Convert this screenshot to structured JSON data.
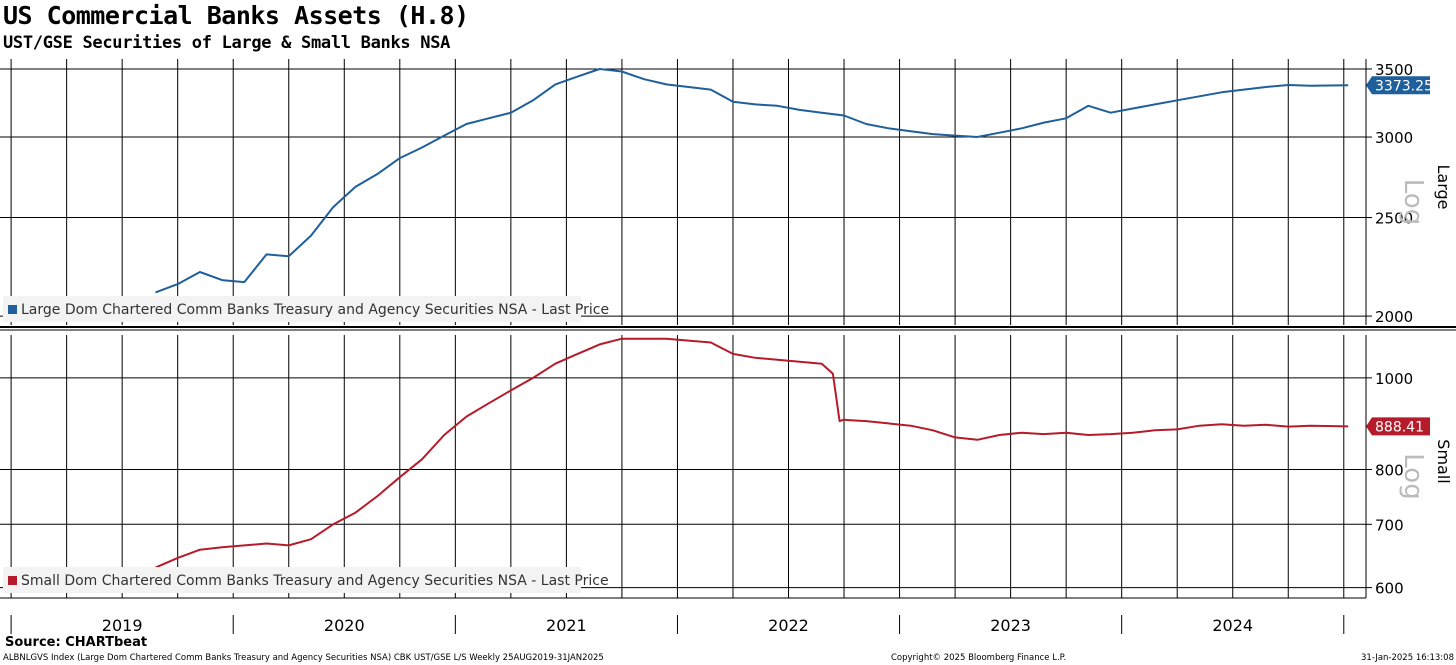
{
  "header": {
    "title": "US Commercial Banks Assets (H.8)",
    "subtitle": "UST/GSE Securities of Large & Small Banks NSA"
  },
  "chart_data": [
    {
      "type": "line",
      "panel": "Large",
      "scale": "Log",
      "scale_label": "Log",
      "ylim": [
        1960,
        3580
      ],
      "yticks": [
        2000,
        2500,
        3000,
        3500
      ],
      "grid": true,
      "legend": "Large Dom Chartered Comm Banks Treasury and Agency Securities NSA - Last Price",
      "last_value_label": "3373.25",
      "color": "#1f5f9c",
      "series": [
        {
          "name": "Large Dom Chartered Comm Banks Treasury and Agency Securities NSA - Last Price",
          "x": [
            2019.65,
            2019.75,
            2019.85,
            2019.95,
            2020.05,
            2020.15,
            2020.25,
            2020.35,
            2020.45,
            2020.55,
            2020.65,
            2020.75,
            2020.85,
            2020.95,
            2021.05,
            2021.15,
            2021.25,
            2021.35,
            2021.45,
            2021.55,
            2021.65,
            2021.75,
            2021.85,
            2021.95,
            2022.05,
            2022.15,
            2022.25,
            2022.35,
            2022.45,
            2022.55,
            2022.65,
            2022.75,
            2022.85,
            2022.95,
            2023.05,
            2023.15,
            2023.25,
            2023.35,
            2023.45,
            2023.55,
            2023.65,
            2023.75,
            2023.85,
            2023.95,
            2024.05,
            2024.15,
            2024.25,
            2024.35,
            2024.45,
            2024.55,
            2024.65,
            2024.75,
            2024.85,
            2025.02
          ],
          "values": [
            2110,
            2150,
            2210,
            2170,
            2160,
            2300,
            2290,
            2400,
            2560,
            2680,
            2760,
            2860,
            2930,
            3010,
            3090,
            3130,
            3170,
            3260,
            3380,
            3440,
            3500,
            3480,
            3420,
            3380,
            3360,
            3340,
            3250,
            3230,
            3220,
            3190,
            3170,
            3150,
            3090,
            3060,
            3040,
            3020,
            3010,
            3000,
            3030,
            3060,
            3100,
            3130,
            3220,
            3170,
            3200,
            3230,
            3260,
            3290,
            3320,
            3340,
            3360,
            3375,
            3370,
            3373.25
          ]
        }
      ]
    },
    {
      "type": "line",
      "panel": "Small",
      "scale": "Log",
      "scale_label": "Log",
      "ylim": [
        585,
        1110
      ],
      "yticks": [
        600,
        700,
        800,
        1000
      ],
      "grid": true,
      "legend": "Small Dom Chartered Comm Banks Treasury and Agency Securities NSA - Last Price",
      "last_value_label": "888.41",
      "color": "#b51b2a",
      "series": [
        {
          "name": "Small Dom Chartered Comm Banks Treasury and Agency Securities NSA - Last Price",
          "x": [
            2019.65,
            2019.75,
            2019.85,
            2019.95,
            2020.05,
            2020.15,
            2020.25,
            2020.35,
            2020.45,
            2020.55,
            2020.65,
            2020.75,
            2020.85,
            2020.95,
            2021.05,
            2021.15,
            2021.25,
            2021.35,
            2021.45,
            2021.55,
            2021.65,
            2021.75,
            2021.85,
            2021.95,
            2022.05,
            2022.15,
            2022.25,
            2022.35,
            2022.45,
            2022.55,
            2022.65,
            2022.7,
            2022.73,
            2022.75,
            2022.78,
            2022.85,
            2022.95,
            2023.05,
            2023.15,
            2023.25,
            2023.35,
            2023.45,
            2023.55,
            2023.65,
            2023.75,
            2023.85,
            2023.95,
            2024.05,
            2024.15,
            2024.25,
            2024.35,
            2024.45,
            2024.55,
            2024.65,
            2024.75,
            2024.85,
            2025.02
          ],
          "values": [
            630,
            645,
            658,
            662,
            665,
            668,
            665,
            675,
            700,
            720,
            750,
            785,
            820,
            870,
            910,
            940,
            970,
            1000,
            1035,
            1060,
            1085,
            1100,
            1100,
            1100,
            1095,
            1090,
            1060,
            1050,
            1045,
            1040,
            1035,
            1010,
            900,
            903,
            902,
            900,
            895,
            890,
            880,
            865,
            860,
            870,
            875,
            872,
            875,
            870,
            872,
            875,
            880,
            882,
            890,
            893,
            890,
            892,
            888,
            890,
            888.41
          ]
        }
      ]
    }
  ],
  "y_axis_titles": {
    "top": "Large",
    "bottom": "Small"
  },
  "x_axis": {
    "range": [
      2018.95,
      2025.1
    ],
    "year_labels": [
      {
        "year": 2019,
        "label": "2019"
      },
      {
        "year": 2020,
        "label": "2020"
      },
      {
        "year": 2021,
        "label": "2021"
      },
      {
        "year": 2022,
        "label": "2022"
      },
      {
        "year": 2023,
        "label": "2023"
      },
      {
        "year": 2024,
        "label": "2024"
      }
    ]
  },
  "footer": {
    "source": "Source: CHARTbeat",
    "description": "ALBNLGVS Index (Large Dom Chartered Comm Banks Treasury and Agency Securities NSA) CBK UST/GSE L/S  Weekly 25AUG2019-31JAN2025",
    "copyright": "Copyright© 2025 Bloomberg Finance L.P.",
    "timestamp": "31-Jan-2025 16:13:08"
  }
}
